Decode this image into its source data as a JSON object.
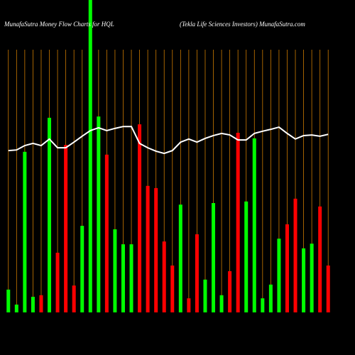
{
  "chart_data": {
    "type": "bar",
    "title": "MunafaSutra  Money Flow  Charts for HQL",
    "subtitle": "(Tekla  Life   Sciences Investors) MunafaSutra.com",
    "categories": [
      null,
      null,
      null,
      null,
      null,
      null,
      null,
      null,
      null,
      null,
      null,
      null,
      null,
      null,
      null,
      null,
      null,
      null,
      null,
      null,
      null,
      null,
      null,
      null,
      null,
      null,
      null,
      null,
      null,
      null,
      null,
      null,
      null,
      null,
      null,
      null,
      null,
      null,
      null,
      null
    ],
    "series": [
      {
        "type": "bar",
        "values": [
          7.3,
          2.5,
          51.4,
          5,
          5.5,
          62.3,
          19.1,
          53.6,
          8.6,
          27.7,
          100,
          62.7,
          50.5,
          26.6,
          21.8,
          21.8,
          60.2,
          40.5,
          39.8,
          22.7,
          15,
          34.5,
          4.5,
          25,
          10.5,
          35,
          5.5,
          13.2,
          57.5,
          35.5,
          55.7,
          4.5,
          8.9,
          23.6,
          28.2,
          36.4,
          20.5,
          22,
          33.9,
          15
        ],
        "colors": [
          "#00ff00",
          "#00ff00",
          "#00ff00",
          "#00ff00",
          "#ff0000",
          "#00ff00",
          "#ff0000",
          "#ff0000",
          "#ff0000",
          "#00ff00",
          "#00ff00",
          "#00ff00",
          "#ff0000",
          "#00ff00",
          "#00ff00",
          "#00ff00",
          "#ff0000",
          "#ff0000",
          "#ff0000",
          "#ff0000",
          "#ff0000",
          "#00ff00",
          "#ff0000",
          "#ff0000",
          "#00ff00",
          "#00ff00",
          "#00ff00",
          "#ff0000",
          "#ff0000",
          "#00ff00",
          "#00ff00",
          "#00ff00",
          "#00ff00",
          "#00ff00",
          "#ff0000",
          "#ff0000",
          "#00ff00",
          "#00ff00",
          "#ff0000",
          "#ff0000"
        ]
      },
      {
        "type": "line",
        "color": "#ffffff",
        "values": [
          51.8,
          52,
          53.4,
          54.1,
          53.4,
          55.5,
          52.7,
          52.7,
          54.5,
          56.4,
          58.2,
          59.1,
          58.2,
          58.9,
          59.5,
          59.5,
          54.1,
          52.7,
          51.6,
          50.9,
          51.8,
          54.5,
          55.5,
          54.5,
          55.7,
          56.6,
          57.3,
          56.8,
          55.2,
          55.2,
          57.3,
          58,
          58.6,
          59.3,
          57.3,
          55.5,
          56.6,
          56.8,
          56.4,
          57
        ]
      }
    ],
    "ylim": [
      0,
      100
    ],
    "grid_color": "#cc7a00"
  }
}
